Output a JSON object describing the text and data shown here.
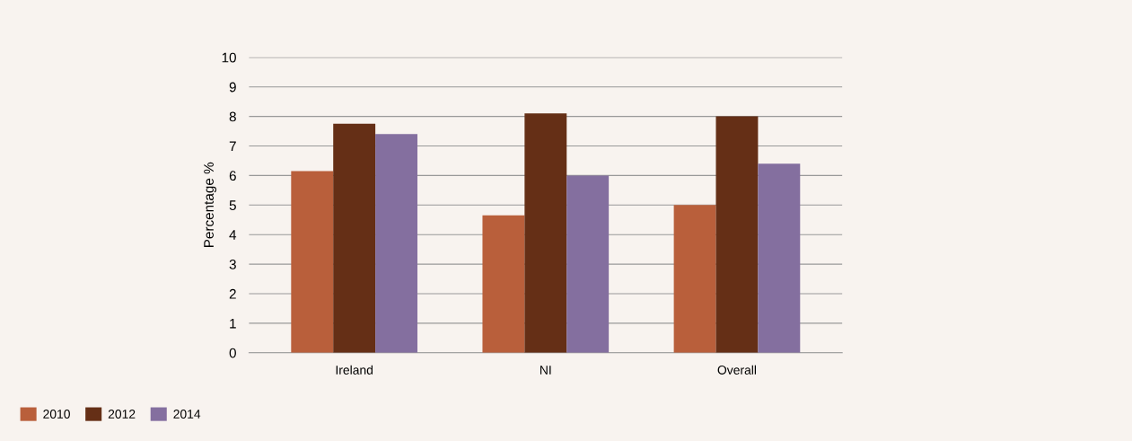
{
  "chart_data": {
    "type": "bar",
    "ylabel": "Percentage %",
    "categories": [
      "Ireland",
      "NI",
      "Overall"
    ],
    "series": [
      {
        "name": "2010",
        "color": "#b95f3b",
        "values": [
          6.15,
          4.65,
          5.0
        ]
      },
      {
        "name": "2012",
        "color": "#652f16",
        "values": [
          7.75,
          8.1,
          8.0
        ]
      },
      {
        "name": "2014",
        "color": "#846f9f",
        "values": [
          7.4,
          6.0,
          6.4
        ]
      }
    ],
    "ylim": [
      0,
      10
    ],
    "yticks": [
      0,
      1,
      2,
      3,
      4,
      5,
      6,
      7,
      8,
      9,
      10
    ],
    "grid": "y",
    "legend": "bottom left"
  }
}
